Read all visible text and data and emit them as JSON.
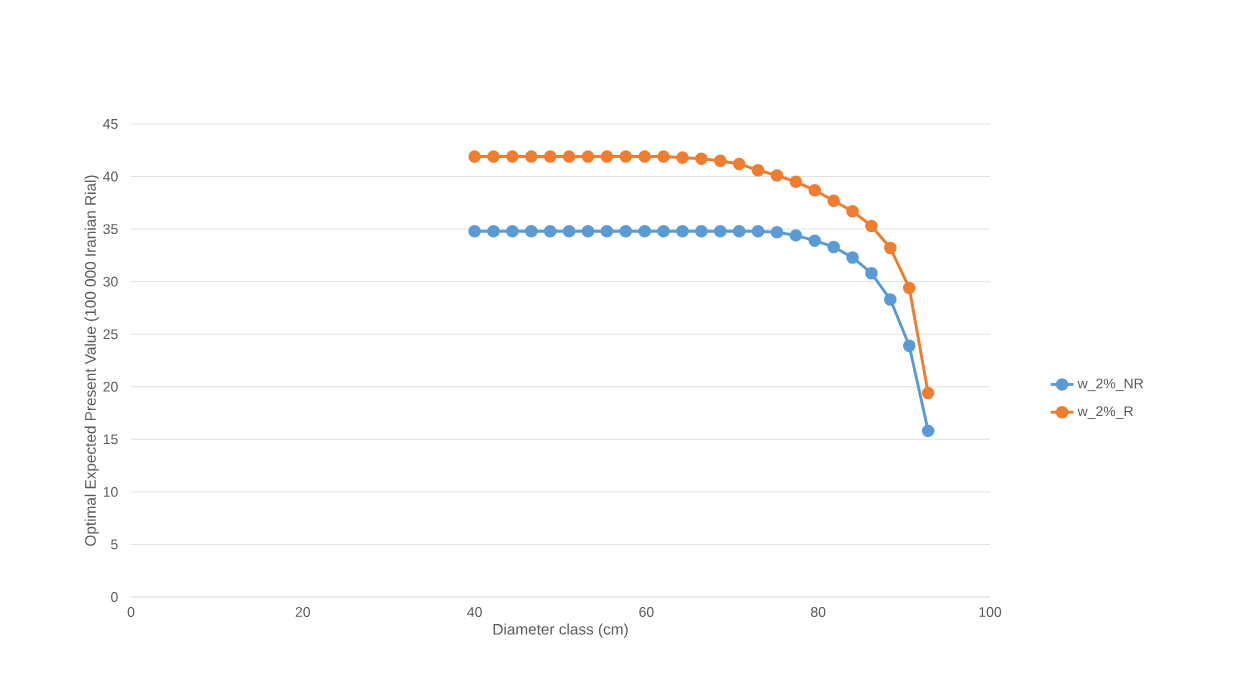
{
  "chart_data": {
    "type": "line",
    "xlabel": "Diameter class (cm)",
    "ylabel": "Optimal Expected Present Value (100 000 Iranian Rial)",
    "x": [
      40,
      42.2,
      44.4,
      46.6,
      48.8,
      51,
      53.2,
      55.4,
      57.6,
      59.8,
      62,
      64.2,
      66.4,
      68.6,
      70.8,
      73,
      75.2,
      77.4,
      79.6,
      81.8,
      84,
      86.2,
      88.4,
      90.6,
      92.8
    ],
    "series": [
      {
        "name": "w_2%_NR",
        "color": "#5b9bd5",
        "values": [
          34.8,
          34.8,
          34.8,
          34.8,
          34.8,
          34.8,
          34.8,
          34.8,
          34.8,
          34.8,
          34.8,
          34.8,
          34.8,
          34.8,
          34.8,
          34.8,
          34.7,
          34.4,
          33.9,
          33.3,
          32.3,
          30.8,
          28.3,
          23.9,
          15.8
        ]
      },
      {
        "name": "w_2%_R",
        "color": "#ed7d31",
        "values": [
          41.9,
          41.9,
          41.9,
          41.9,
          41.9,
          41.9,
          41.9,
          41.9,
          41.9,
          41.9,
          41.9,
          41.8,
          41.7,
          41.5,
          41.2,
          40.6,
          40.1,
          39.5,
          38.7,
          37.7,
          36.7,
          35.3,
          33.2,
          29.4,
          19.4
        ]
      }
    ],
    "xlim": [
      0,
      100
    ],
    "xticks": [
      0,
      20,
      40,
      60,
      80,
      100
    ],
    "ylim": [
      0,
      45
    ],
    "yticks": [
      0,
      5,
      10,
      15,
      20,
      25,
      30,
      35,
      40,
      45
    ],
    "grid": "y",
    "legend": "right",
    "marker": "circle",
    "line_style": "solid"
  }
}
